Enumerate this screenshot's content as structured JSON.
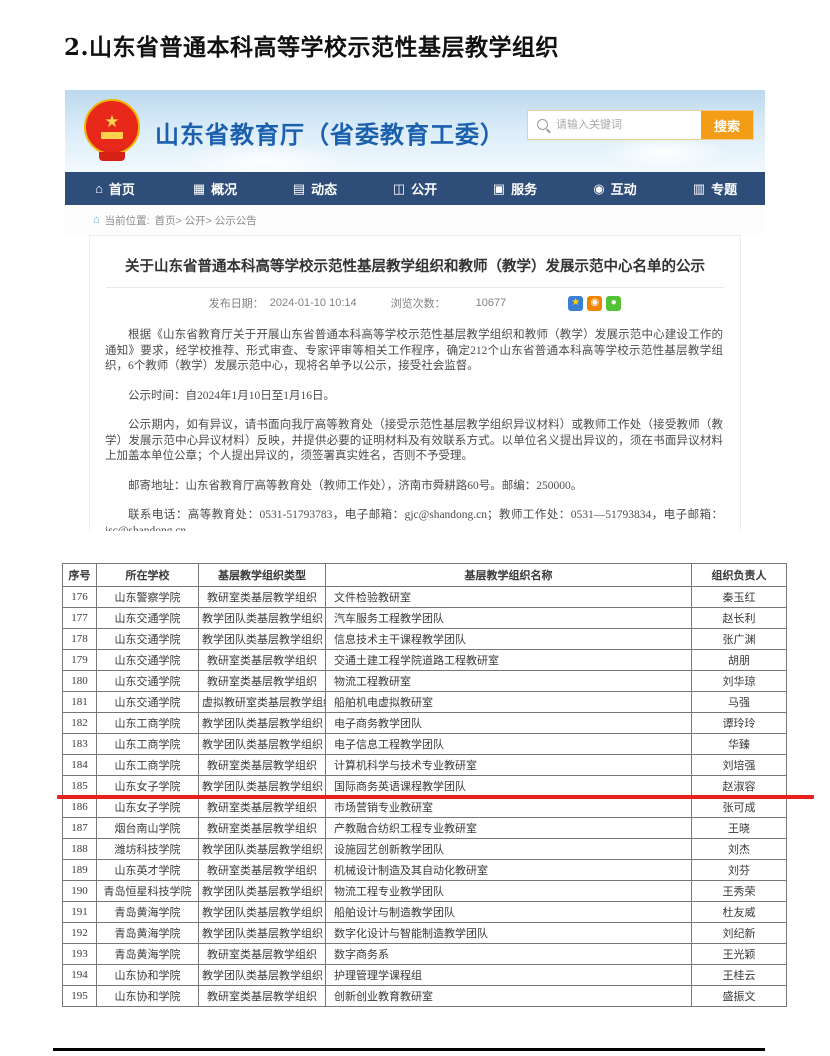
{
  "page": {
    "doc_title": "2.山东省普通本科高等学校示范性基层教学组织"
  },
  "site": {
    "name": "山东省教育厅（省委教育工委）",
    "search": {
      "placeholder": "请输入关键词",
      "button": "搜索"
    },
    "nav": [
      {
        "id": "home",
        "label": "首页",
        "icon": "home-icon",
        "glyph": "⌂"
      },
      {
        "id": "overview",
        "label": "概况",
        "icon": "overview-grid-icon",
        "glyph": "▦"
      },
      {
        "id": "news",
        "label": "动态",
        "icon": "news-stack-icon",
        "glyph": "▤"
      },
      {
        "id": "disclosure",
        "label": "公开",
        "icon": "open-book-icon",
        "glyph": "◫"
      },
      {
        "id": "services",
        "label": "服务",
        "icon": "service-doc-icon",
        "glyph": "▣"
      },
      {
        "id": "interaction",
        "label": "互动",
        "icon": "chat-bubble-icon",
        "glyph": "◉"
      },
      {
        "id": "topics",
        "label": "专题",
        "icon": "topics-list-icon",
        "glyph": "▥"
      }
    ],
    "breadcrumb": {
      "label": "当前位置:",
      "crumbs": [
        "首页",
        "公开",
        "公示公告"
      ],
      "separator": ">"
    }
  },
  "article": {
    "title": "关于山东省普通本科高等学校示范性基层教学组织和教师（教学）发展示范中心名单的公示",
    "meta": {
      "date_label": "发布日期：",
      "date": "2024-01-10 10:14",
      "views_label": "浏览次数：",
      "views": "10677"
    },
    "share_icons": [
      {
        "icon": "favorite-star-icon",
        "glyph": "★",
        "bg": "#3b7fd4",
        "fg": "#ffd400"
      },
      {
        "icon": "weibo-share-icon",
        "glyph": "◉",
        "bg": "#f08300",
        "fg": "#ffffff"
      },
      {
        "icon": "wechat-share-icon",
        "glyph": "●",
        "bg": "#52c332",
        "fg": "#ffffff"
      }
    ],
    "paragraphs": [
      "根据《山东省教育厅关于开展山东省普通本科高等学校示范性基层教学组织和教师（教学）发展示范中心建设工作的通知》要求，经学校推荐、形式审查、专家评审等相关工作程序，确定212个山东省普通本科高等学校示范性基层教学组织，6个教师（教学）发展示范中心，现将名单予以公示，接受社会监督。",
      "公示时间：自2024年1月10日至1月16日。",
      "公示期内，如有异议，请书面向我厅高等教育处（接受示范性基层教学组织异议材料）或教师工作处（接受教师（教学）发展示范中心异议材料）反映，并提供必要的证明材料及有效联系方式。以单位名义提出异议的，须在书面异议材料上加盖本单位公章；个人提出异议的，须签署真实姓名，否则不予受理。",
      "邮寄地址：山东省教育厅高等教育处（教师工作处），济南市舜耕路60号。邮编：250000。",
      "联系电话：高等教育处：0531-51793783，电子邮箱：gjc@shandong.cn；教师工作处：0531—51793834，电子邮箱：jsc@shandong.cn。"
    ]
  },
  "table": {
    "headers": [
      "序号",
      "所在学校",
      "基层教学组织类型",
      "基层教学组织名称",
      "组织负责人"
    ],
    "rows": [
      [
        "176",
        "山东警察学院",
        "教研室类基层教学组织",
        "文件检验教研室",
        "秦玉红"
      ],
      [
        "177",
        "山东交通学院",
        "教学团队类基层教学组织",
        "汽车服务工程教学团队",
        "赵长利"
      ],
      [
        "178",
        "山东交通学院",
        "教学团队类基层教学组织",
        "信息技术主干课程教学团队",
        "张广渊"
      ],
      [
        "179",
        "山东交通学院",
        "教研室类基层教学组织",
        "交通土建工程学院道路工程教研室",
        "胡朋"
      ],
      [
        "180",
        "山东交通学院",
        "教研室类基层教学组织",
        "物流工程教研室",
        "刘华琼"
      ],
      [
        "181",
        "山东交通学院",
        "虚拟教研室类基层教学组织",
        "船舶机电虚拟教研室",
        "马强"
      ],
      [
        "182",
        "山东工商学院",
        "教学团队类基层教学组织",
        "电子商务教学团队",
        "谭玲玲"
      ],
      [
        "183",
        "山东工商学院",
        "教学团队类基层教学组织",
        "电子信息工程教学团队",
        "华臻"
      ],
      [
        "184",
        "山东工商学院",
        "教研室类基层教学组织",
        "计算机科学与技术专业教研室",
        "刘培强"
      ],
      [
        "185",
        "山东女子学院",
        "教学团队类基层教学组织",
        "国际商务英语课程教学团队",
        "赵淑容"
      ],
      [
        "186",
        "山东女子学院",
        "教研室类基层教学组织",
        "市场营销专业教研室",
        "张可成"
      ],
      [
        "187",
        "烟台南山学院",
        "教研室类基层教学组织",
        "产教融合纺织工程专业教研室",
        "王晓"
      ],
      [
        "188",
        "潍坊科技学院",
        "教学团队类基层教学组织",
        "设施园艺创新教学团队",
        "刘杰"
      ],
      [
        "189",
        "山东英才学院",
        "教研室类基层教学组织",
        "机械设计制造及其自动化教研室",
        "刘芬"
      ],
      [
        "190",
        "青岛恒星科技学院",
        "教学团队类基层教学组织",
        "物流工程专业教学团队",
        "王秀荣"
      ],
      [
        "191",
        "青岛黄海学院",
        "教学团队类基层教学组织",
        "船舶设计与制造教学团队",
        "杜友威"
      ],
      [
        "192",
        "青岛黄海学院",
        "教学团队类基层教学组织",
        "数字化设计与智能制造教学团队",
        "刘纪新"
      ],
      [
        "193",
        "青岛黄海学院",
        "教研室类基层教学组织",
        "数字商务系",
        "王光颖"
      ],
      [
        "194",
        "山东协和学院",
        "教学团队类基层教学组织",
        "护理管理学课程组",
        "王桂云"
      ],
      [
        "195",
        "山东协和学院",
        "教研室类基层教学组织",
        "创新创业教育教研室",
        "盛振文"
      ]
    ],
    "highlighted_row_number": "185",
    "highlighted_row_index": 9
  },
  "colors": {
    "nav_bar": "#2e4d79",
    "site_title_blue": "#1a60ad",
    "search_button_orange": "#f39d16",
    "highlight_red": "#e8211d",
    "table_border": "#777777"
  }
}
